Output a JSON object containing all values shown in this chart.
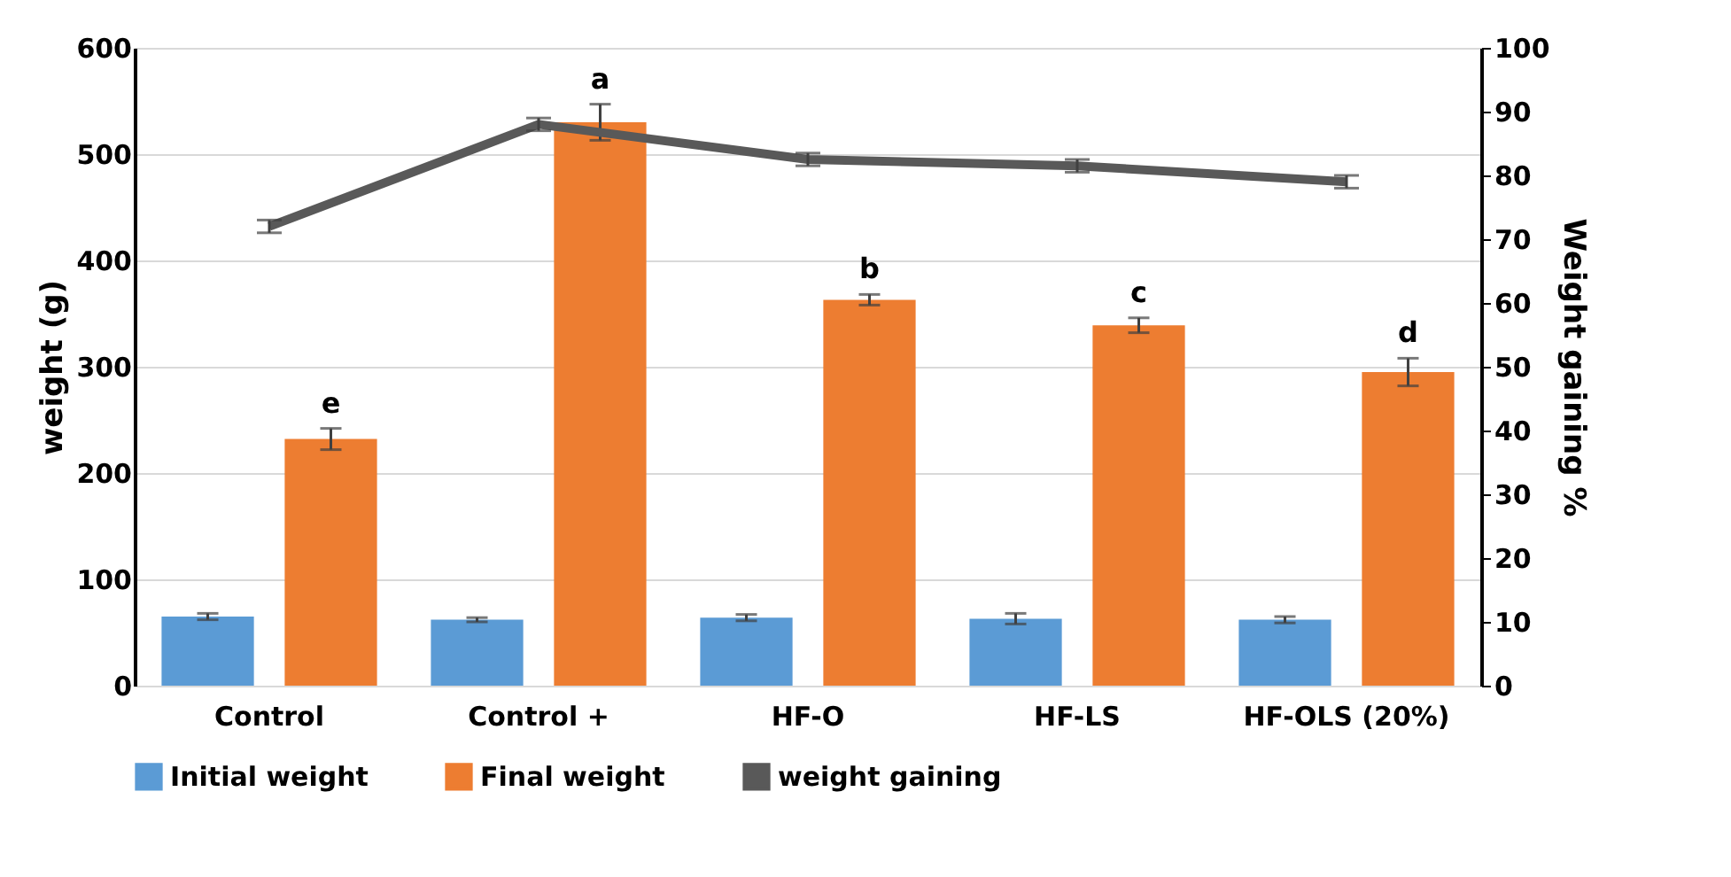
{
  "chart_data": {
    "type": "bar",
    "categories": [
      "Control",
      "Control +",
      "HF-O",
      "HF-LS",
      "HF-OLS (20%)"
    ],
    "series": [
      {
        "name": "Initial weight",
        "color": "#5b9bd5",
        "values": [
          65,
          62,
          64,
          63,
          62
        ],
        "errors": [
          3,
          2,
          3,
          5,
          3
        ]
      },
      {
        "name": "Final weight",
        "color": "#ed7d31",
        "values": [
          232,
          530,
          363,
          339,
          295
        ],
        "errors": [
          10,
          17,
          5,
          7,
          13
        ]
      },
      {
        "name": "weight gaining",
        "type": "line",
        "axis": "y2",
        "color": "#595959",
        "values": [
          72,
          88,
          82.5,
          81.5,
          79
        ],
        "errors": [
          1,
          1,
          1,
          1,
          1
        ]
      }
    ],
    "ylabel": "weight (g)",
    "y2label": "Weight gaining %",
    "ylim": [
      0,
      600
    ],
    "yticks": [
      0,
      100,
      200,
      300,
      400,
      500,
      600
    ],
    "y2lim": [
      0,
      100
    ],
    "y2ticks": [
      0,
      10,
      20,
      30,
      40,
      50,
      60,
      70,
      80,
      90,
      100
    ],
    "annotations": [
      "e",
      "a",
      "b",
      "c",
      "d"
    ],
    "grid": "y",
    "legend": "bottom"
  }
}
